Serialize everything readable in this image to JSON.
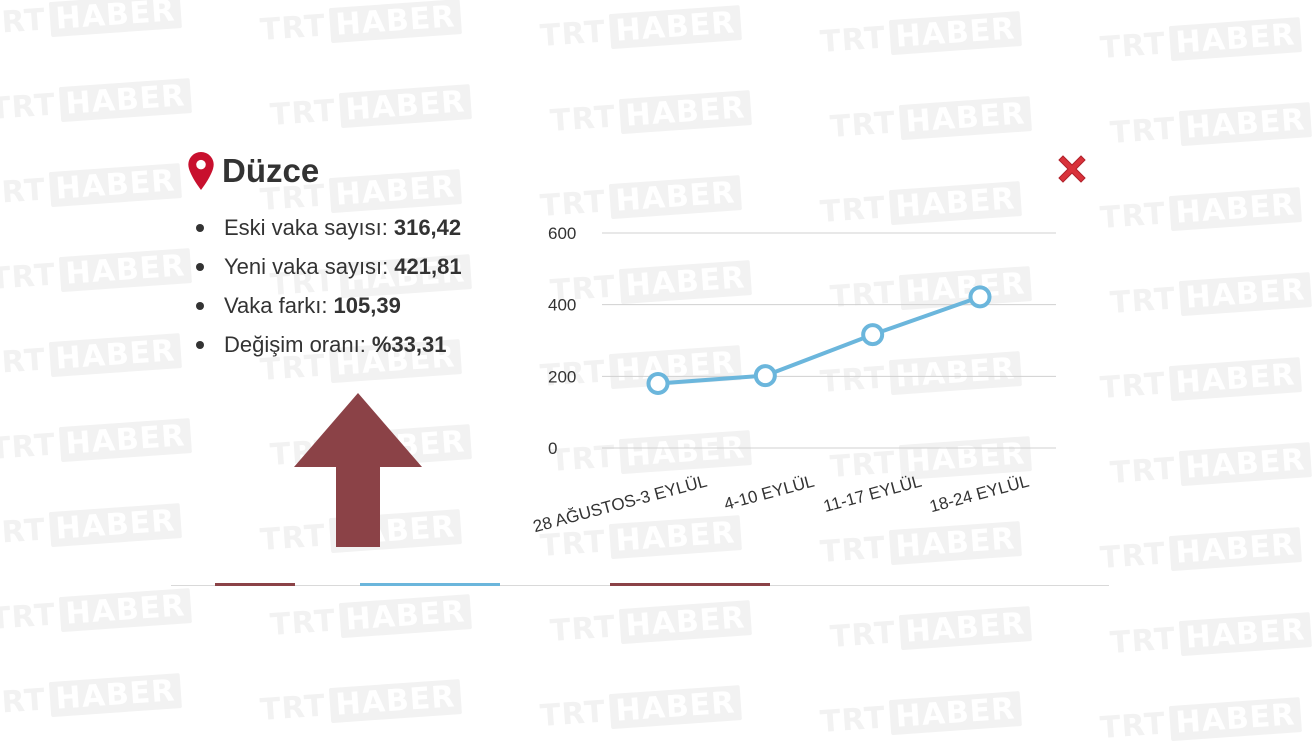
{
  "title": "Düzce",
  "stats": [
    {
      "label": "Eski vaka sayısı:",
      "value": "316,42"
    },
    {
      "label": "Yeni vaka sayısı:",
      "value": "421,81"
    },
    {
      "label": "Vaka farkı:",
      "value": "105,39"
    },
    {
      "label": "Değişim oranı:",
      "value": "%33,31"
    }
  ],
  "watermark": {
    "part1": "TRT",
    "part2": "HABER"
  },
  "colors": {
    "line": "#6bb6dc",
    "arrow": "#8b4247",
    "pin": "#c8102e",
    "close": "#d9323a"
  },
  "icons": {
    "pin": "map-pin-icon",
    "close": "close-x-icon",
    "arrow": "arrow-up-icon"
  },
  "chart_data": {
    "type": "line",
    "categories": [
      "28 AĞUSTOS-3 EYLÜL",
      "4-10 EYLÜL",
      "11-17 EYLÜL",
      "18-24 EYLÜL"
    ],
    "series": [
      {
        "values": [
          180,
          202,
          316.42,
          421.81
        ]
      }
    ],
    "yticks": [
      0,
      200,
      400,
      600
    ],
    "ylim": [
      0,
      600
    ],
    "grid": true,
    "title": "",
    "xlabel": "",
    "ylabel": ""
  }
}
